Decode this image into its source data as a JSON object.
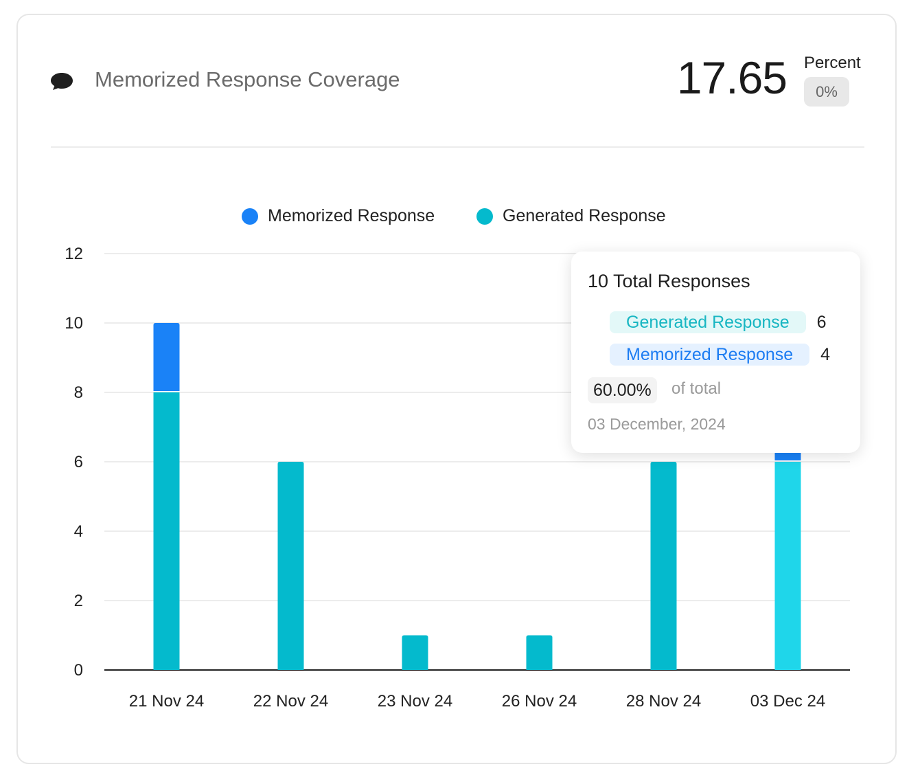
{
  "header": {
    "icon": "chat-bubble-icon",
    "title": "Memorized Response Coverage",
    "metric_value": "17.65",
    "metric_unit": "Percent",
    "metric_badge": "0%"
  },
  "colors": {
    "memorized": "#1a82f7",
    "generated": "#04bacd",
    "generated_highlight": "#1fd6ea",
    "grid": "#e6e6e6",
    "axis": "#222222"
  },
  "chart_data": {
    "type": "bar",
    "stacked": true,
    "categories": [
      "21 Nov 24",
      "22 Nov 24",
      "23 Nov 24",
      "26 Nov 24",
      "28 Nov 24",
      "03 Dec 24"
    ],
    "series": [
      {
        "name": "Generated Response",
        "values": [
          8,
          6,
          1,
          1,
          6,
          6
        ]
      },
      {
        "name": "Memorized Response",
        "values": [
          2,
          0,
          0,
          0,
          0,
          4
        ]
      }
    ],
    "legend": [
      "Memorized Response",
      "Generated Response"
    ],
    "legend_position": "top-center",
    "ylim": [
      0,
      12
    ],
    "yticks": [
      0,
      2,
      4,
      6,
      8,
      10,
      12
    ],
    "grid": true,
    "highlighted_category": "03 Dec 24"
  },
  "tooltip": {
    "title": "10 Total Responses",
    "rows": [
      {
        "label": "Generated Response",
        "count": "6"
      },
      {
        "label": "Memorized Response",
        "count": "4"
      }
    ],
    "percent": "60.00%",
    "percent_suffix": "of total",
    "date": "03 December, 2024"
  }
}
